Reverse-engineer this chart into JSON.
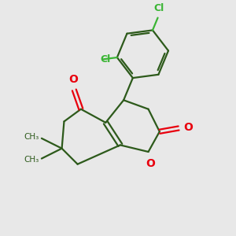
{
  "background_color": "#e8e8e8",
  "bond_color": "#2d5a1b",
  "cl_color": "#3ab534",
  "o_color": "#e8000d",
  "line_width": 1.6,
  "figsize": [
    3.0,
    3.0
  ],
  "dpi": 100,
  "xlim": [
    0,
    10
  ],
  "ylim": [
    0,
    10
  ]
}
